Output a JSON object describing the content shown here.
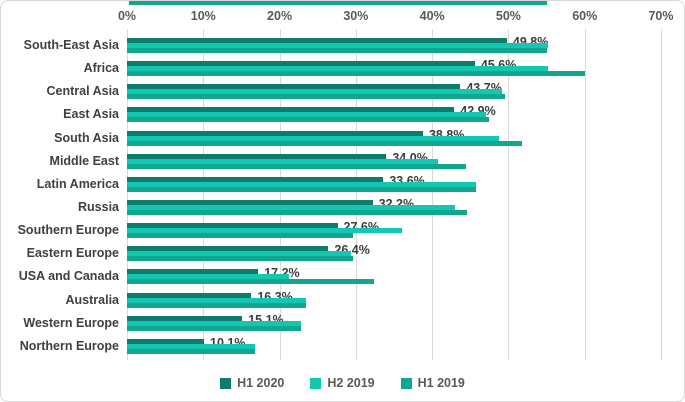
{
  "chart_data": {
    "type": "bar",
    "orientation": "horizontal",
    "title": "",
    "xlabel": "",
    "ylabel": "",
    "axis_position": "top",
    "legend_position": "bottom",
    "grid": true,
    "xlim": [
      0,
      70
    ],
    "x_ticks": [
      "0%",
      "10%",
      "20%",
      "30%",
      "40%",
      "50%",
      "60%",
      "70%"
    ],
    "categories": [
      "South-East Asia",
      "Africa",
      "Central Asia",
      "East Asia",
      "South Asia",
      "Middle East",
      "Latin America",
      "Russia",
      "Southern Europe",
      "Eastern Europe",
      "USA and Canada",
      "Australia",
      "Western Europe",
      "Northern Europe"
    ],
    "series": [
      {
        "name": "H1 2020",
        "color": "#0f7c6b",
        "values": [
          49.8,
          45.6,
          43.7,
          42.9,
          38.8,
          34.0,
          33.6,
          32.2,
          27.6,
          26.4,
          17.2,
          16.3,
          15.1,
          10.1
        ],
        "data_labels": [
          "49.8%",
          "45.6%",
          "43.7%",
          "42.9%",
          "38.8%",
          "34.0%",
          "33.6%",
          "32.2%",
          "27.6%",
          "26.4%",
          "17.2%",
          "16.3%",
          "15.1%",
          "10.1%"
        ]
      },
      {
        "name": "H2 2019",
        "color": "#14c7b2",
        "values": [
          55.2,
          55.2,
          49.2,
          47.0,
          48.8,
          40.8,
          45.8,
          43.0,
          36.1,
          29.4,
          21.2,
          23.4,
          22.8,
          16.8
        ]
      },
      {
        "name": "H1 2019",
        "color": "#10a78e",
        "values": [
          55.0,
          60.0,
          49.5,
          47.5,
          51.8,
          44.5,
          45.8,
          44.6,
          29.6,
          29.6,
          32.4,
          23.4,
          22.8,
          16.8
        ]
      }
    ]
  },
  "decor": {
    "top_partial_bar_color": "#10a78e",
    "gridline_color": "#d9d9d9",
    "label_color": "#404040",
    "axis_text_color": "#595959"
  }
}
